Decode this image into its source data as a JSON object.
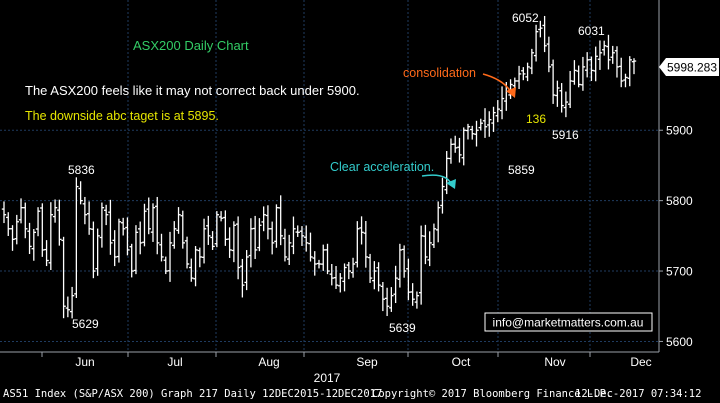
{
  "chart_data": {
    "type": "ohlc",
    "title": "ASX200 Daily Chart",
    "y_axis": {
      "ticks": [
        5600,
        5700,
        5800,
        5900
      ],
      "min": 5585,
      "max": 6085,
      "side": "right",
      "grid": true
    },
    "x_axis": {
      "month_labels": [
        "Jun",
        "Jul",
        "Aug",
        "Sep",
        "Oct",
        "Nov",
        "Dec"
      ],
      "year_label": "2017",
      "grid": true
    },
    "last_price": "5998.283",
    "closes": [
      5780,
      5760,
      5745,
      5770,
      5790,
      5760,
      5735,
      5755,
      5785,
      5730,
      5715,
      5780,
      5790,
      5745,
      5650,
      5645,
      5665,
      5820,
      5800,
      5780,
      5760,
      5700,
      5750,
      5790,
      5780,
      5740,
      5720,
      5770,
      5760,
      5730,
      5700,
      5755,
      5740,
      5785,
      5760,
      5790,
      5740,
      5720,
      5700,
      5740,
      5760,
      5780,
      5740,
      5710,
      5690,
      5730,
      5720,
      5760,
      5750,
      5735,
      5780,
      5775,
      5745,
      5730,
      5765,
      5705,
      5680,
      5720,
      5760,
      5730,
      5765,
      5780,
      5760,
      5740,
      5790,
      5750,
      5720,
      5740,
      5760,
      5755,
      5750,
      5740,
      5720,
      5710,
      5710,
      5730,
      5700,
      5690,
      5680,
      5690,
      5705,
      5700,
      5710,
      5760,
      5755,
      5720,
      5690,
      5700,
      5680,
      5660,
      5650,
      5665,
      5690,
      5730,
      5700,
      5670,
      5660,
      5665,
      5750,
      5720,
      5740,
      5760,
      5790,
      5820,
      5860,
      5880,
      5875,
      5865,
      5900,
      5905,
      5895,
      5900,
      5910,
      5905,
      5915,
      5925,
      5930,
      5945,
      5955,
      5965,
      5970,
      5980,
      5980,
      5990,
      6010,
      6040,
      6045,
      6020,
      5990,
      5950,
      5960,
      5935,
      5940,
      5970,
      5985,
      5965,
      5990,
      6000,
      5985,
      6005,
      6010,
      6020,
      6000,
      6010,
      5990,
      5970,
      5975,
      6000,
      5998.283
    ],
    "annotations": [
      {
        "text": "5836",
        "type": "high"
      },
      {
        "text": "5629",
        "type": "low"
      },
      {
        "text": "5639",
        "type": "low"
      },
      {
        "text": "5859",
        "type": "low"
      },
      {
        "text": "6052",
        "type": "high"
      },
      {
        "text": "6031",
        "type": "high"
      },
      {
        "text": "5916",
        "type": "low"
      },
      {
        "text": "136",
        "type": "range"
      },
      {
        "text": "Clear acceleration.",
        "type": "callout",
        "color": "#33cccc"
      },
      {
        "text": "consolidation",
        "type": "callout",
        "color": "#ff6a1a"
      }
    ],
    "commentary": [
      {
        "text": "The ASX200 feels like it may not correct back under 5900.",
        "color": "#ffffff"
      },
      {
        "text": "The downside abc taget is at 5895.",
        "color": "#e6e600"
      }
    ],
    "watermark": "info@marketmatters.com.au",
    "colors": {
      "background": "#000000",
      "bars": "#ffffff",
      "grid": "#1f3b5f",
      "title": "#33cc66"
    }
  },
  "footer": {
    "left": "AS51 Index (S&P/ASX 200) Graph 217  Daily 12DEC2015-12DEC2017",
    "center": "Copyright© 2017 Bloomberg Finance L.P.",
    "right": "12-Dec-2017 07:34:12"
  }
}
